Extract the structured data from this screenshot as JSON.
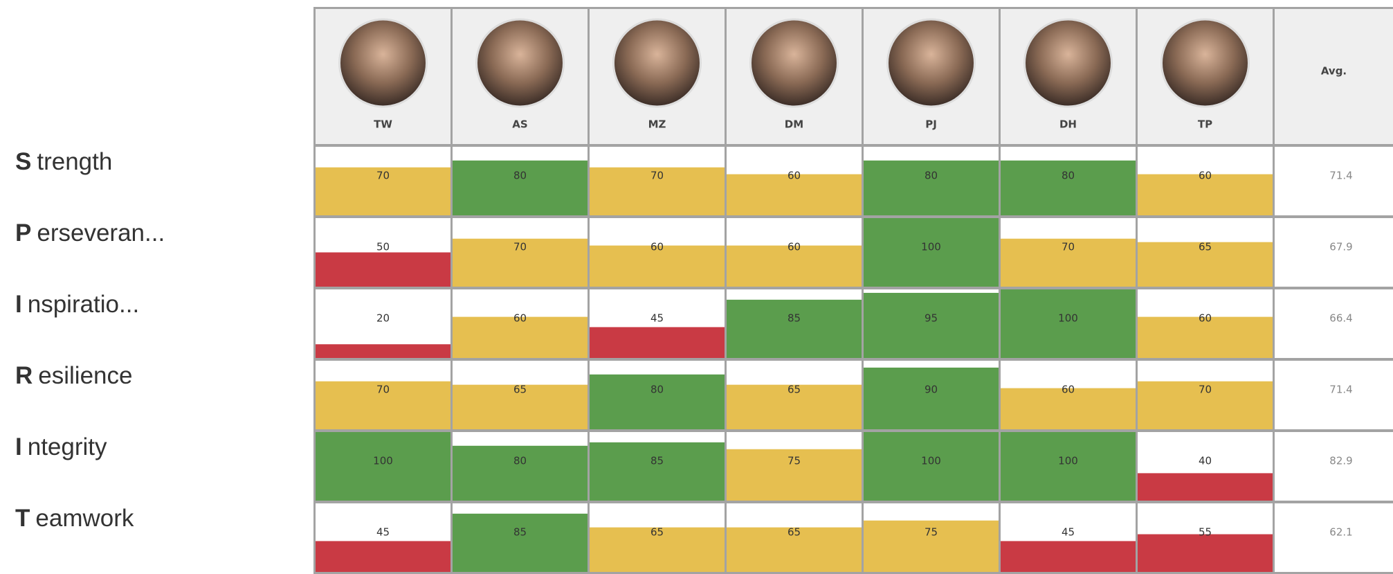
{
  "columns": [
    "TW",
    "AS",
    "MZ",
    "DM",
    "PJ",
    "DH",
    "TP"
  ],
  "avg_label": "Avg.",
  "rows": [
    {
      "initial": "S",
      "rest": "trength",
      "avg": 71.4,
      "cells": [
        {
          "value": 70,
          "color": "#e6bf50"
        },
        {
          "value": 80,
          "color": "#5b9d4d"
        },
        {
          "value": 70,
          "color": "#e6bf50"
        },
        {
          "value": 60,
          "color": "#e6bf50"
        },
        {
          "value": 80,
          "color": "#5b9d4d"
        },
        {
          "value": 80,
          "color": "#5b9d4d"
        },
        {
          "value": 60,
          "color": "#e6bf50"
        }
      ]
    },
    {
      "initial": "P",
      "rest": "erseveran...",
      "avg": 67.9,
      "cells": [
        {
          "value": 50,
          "color": "#c93a44"
        },
        {
          "value": 70,
          "color": "#e6bf50"
        },
        {
          "value": 60,
          "color": "#e6bf50"
        },
        {
          "value": 60,
          "color": "#e6bf50"
        },
        {
          "value": 100,
          "color": "#5b9d4d"
        },
        {
          "value": 70,
          "color": "#e6bf50"
        },
        {
          "value": 65,
          "color": "#e6bf50"
        }
      ]
    },
    {
      "initial": "I",
      "rest": "nspiratio...",
      "avg": 66.4,
      "cells": [
        {
          "value": 20,
          "color": "#c93a44"
        },
        {
          "value": 60,
          "color": "#e6bf50"
        },
        {
          "value": 45,
          "color": "#c93a44"
        },
        {
          "value": 85,
          "color": "#5b9d4d"
        },
        {
          "value": 95,
          "color": "#5b9d4d"
        },
        {
          "value": 100,
          "color": "#5b9d4d"
        },
        {
          "value": 60,
          "color": "#e6bf50"
        }
      ]
    },
    {
      "initial": "R",
      "rest": "esilience",
      "avg": 71.4,
      "cells": [
        {
          "value": 70,
          "color": "#e6bf50"
        },
        {
          "value": 65,
          "color": "#e6bf50"
        },
        {
          "value": 80,
          "color": "#5b9d4d"
        },
        {
          "value": 65,
          "color": "#e6bf50"
        },
        {
          "value": 90,
          "color": "#5b9d4d"
        },
        {
          "value": 60,
          "color": "#e6bf50"
        },
        {
          "value": 70,
          "color": "#e6bf50"
        }
      ]
    },
    {
      "initial": "I",
      "rest": "ntegrity",
      "avg": 82.9,
      "cells": [
        {
          "value": 100,
          "color": "#5b9d4d"
        },
        {
          "value": 80,
          "color": "#5b9d4d"
        },
        {
          "value": 85,
          "color": "#5b9d4d"
        },
        {
          "value": 75,
          "color": "#e6bf50"
        },
        {
          "value": 100,
          "color": "#5b9d4d"
        },
        {
          "value": 100,
          "color": "#5b9d4d"
        },
        {
          "value": 40,
          "color": "#c93a44"
        }
      ]
    },
    {
      "initial": "T",
      "rest": "eamwork",
      "avg": 62.1,
      "cells": [
        {
          "value": 45,
          "color": "#c93a44"
        },
        {
          "value": 85,
          "color": "#5b9d4d"
        },
        {
          "value": 65,
          "color": "#e6bf50"
        },
        {
          "value": 65,
          "color": "#e6bf50"
        },
        {
          "value": 75,
          "color": "#e6bf50"
        },
        {
          "value": 45,
          "color": "#c93a44"
        },
        {
          "value": 55,
          "color": "#c93a44"
        }
      ]
    }
  ]
}
